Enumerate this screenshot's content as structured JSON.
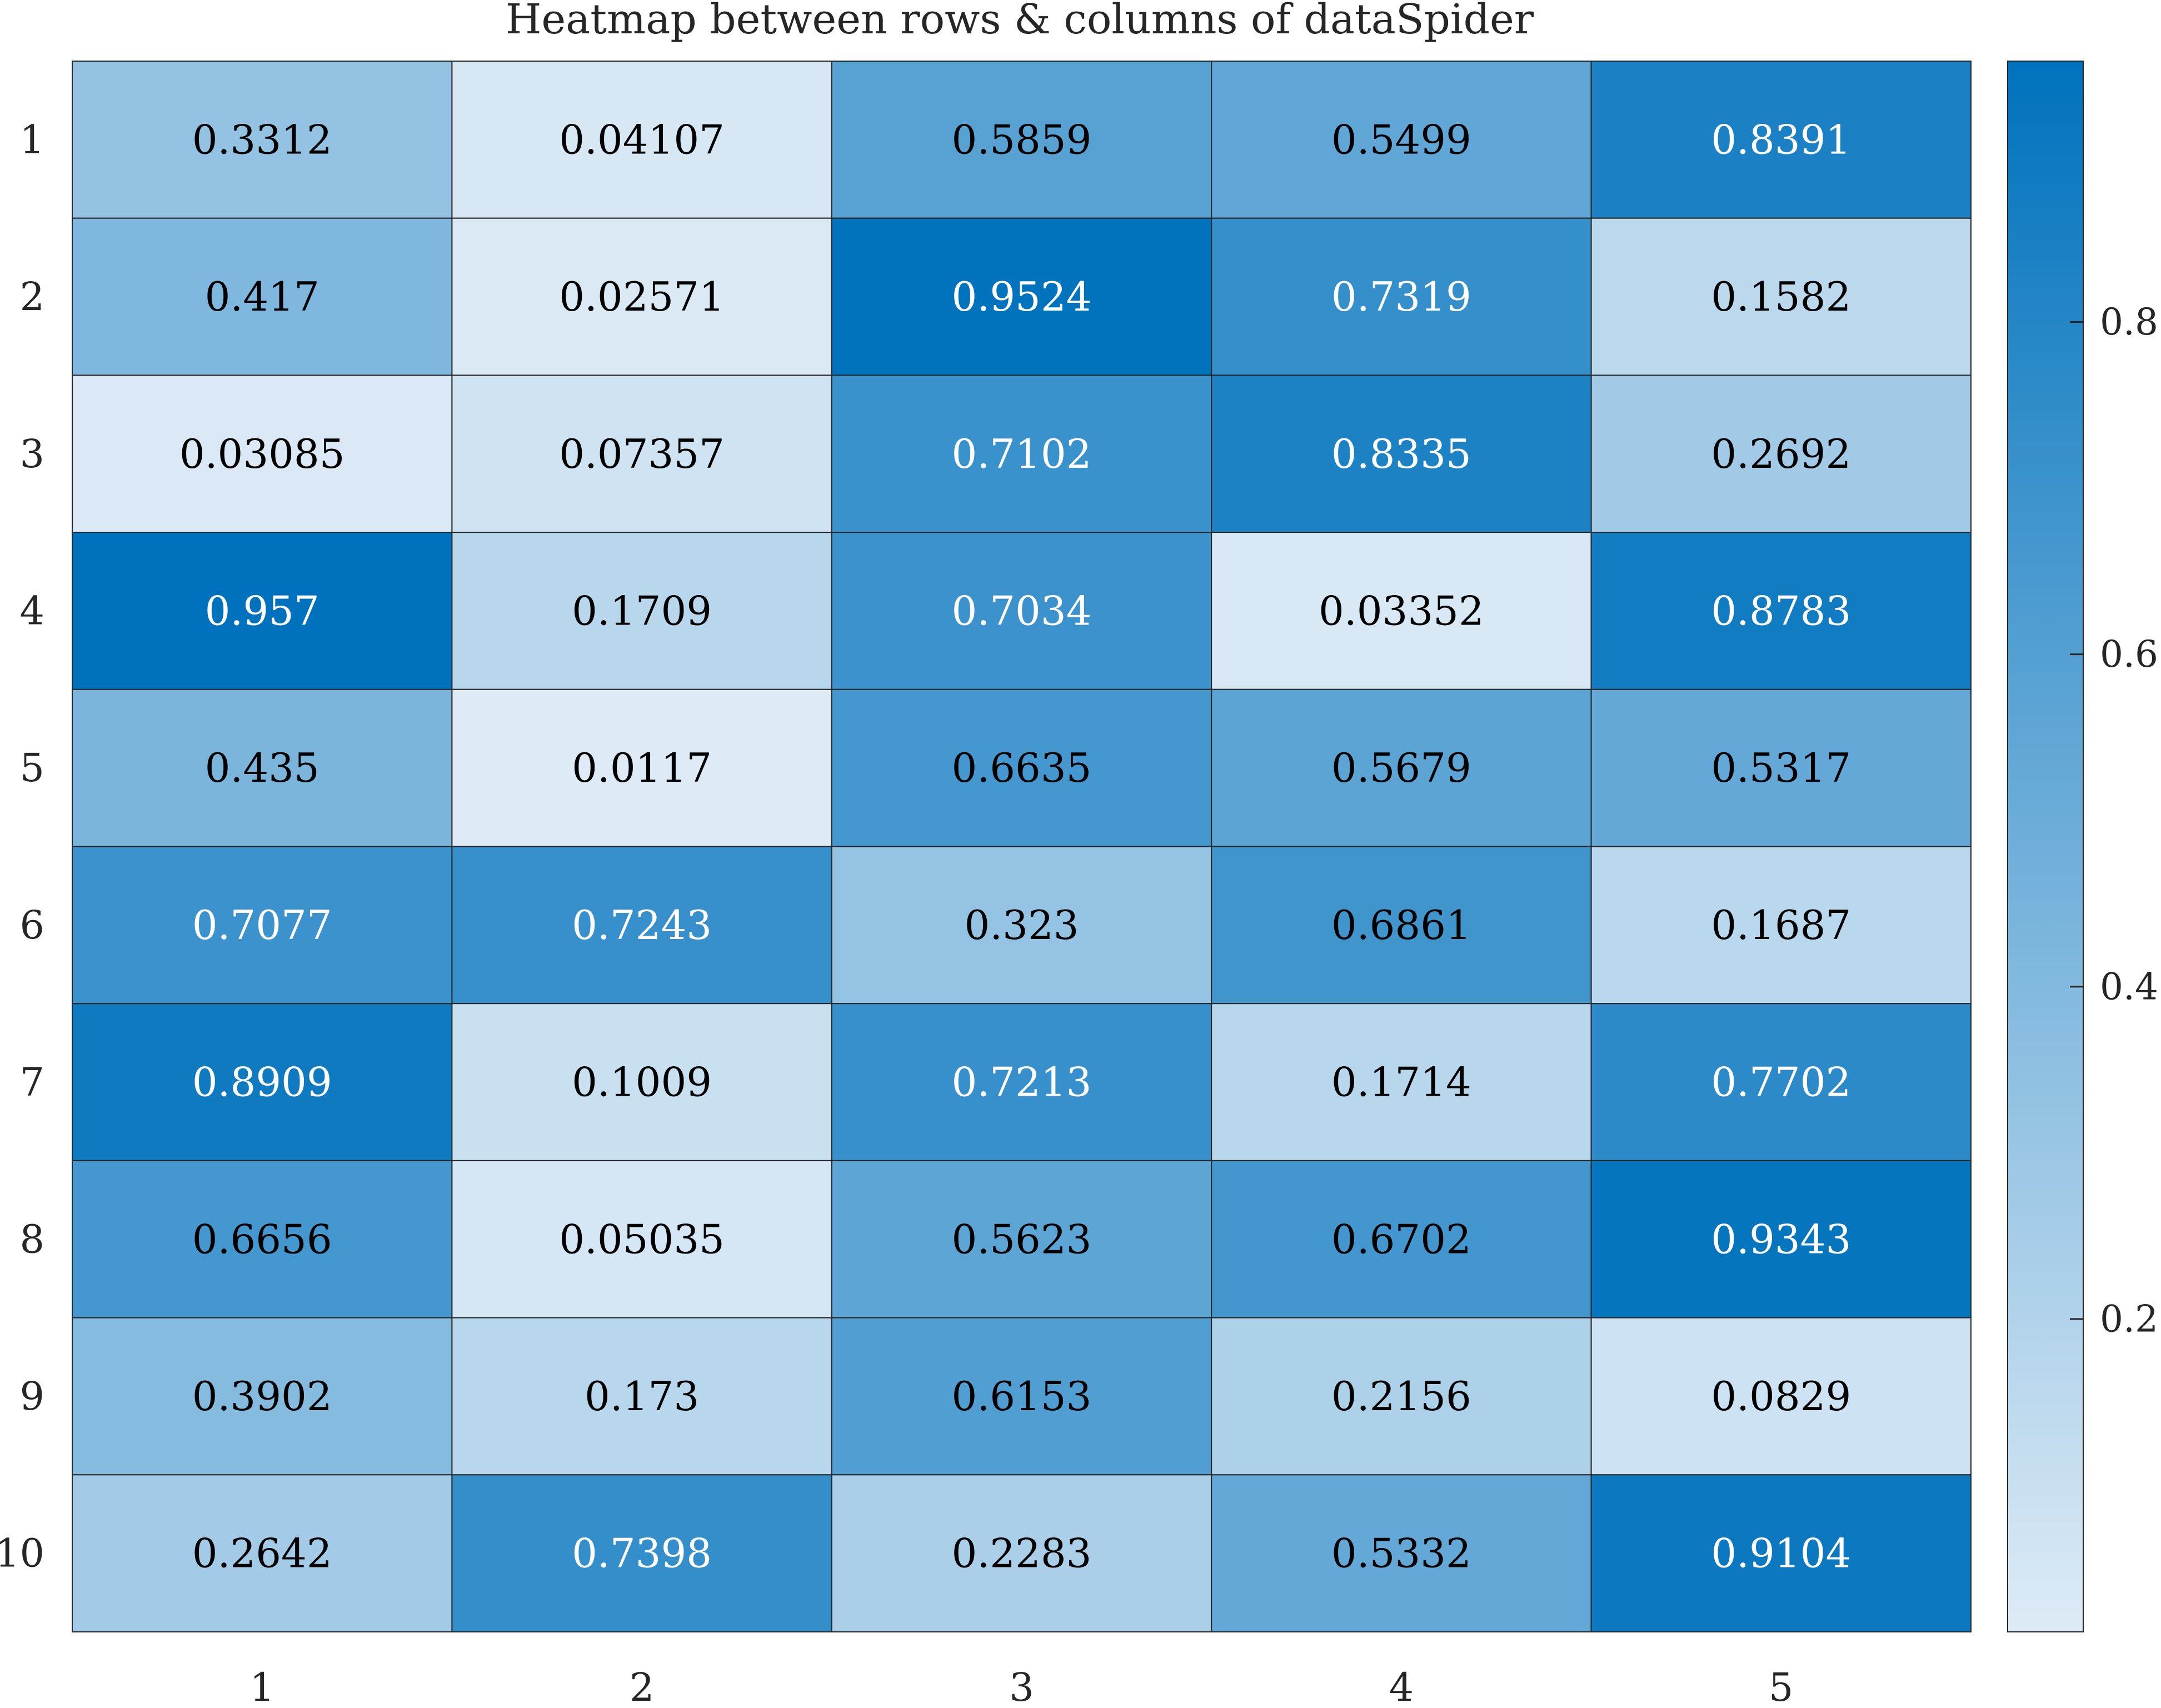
{
  "chart_data": {
    "type": "heatmap",
    "title": "Heatmap between rows & columns of dataSpider",
    "xlabel": "",
    "ylabel": "",
    "row_labels": [
      "1",
      "2",
      "3",
      "4",
      "5",
      "6",
      "7",
      "8",
      "9",
      "10"
    ],
    "col_labels": [
      "1",
      "2",
      "3",
      "4",
      "5"
    ],
    "cell_labels": [
      [
        "0.3312",
        "0.04107",
        "0.5859",
        "0.5499",
        "0.8391"
      ],
      [
        "0.417",
        "0.02571",
        "0.9524",
        "0.7319",
        "0.1582"
      ],
      [
        "0.03085",
        "0.07357",
        "0.7102",
        "0.8335",
        "0.2692"
      ],
      [
        "0.957",
        "0.1709",
        "0.7034",
        "0.03352",
        "0.8783"
      ],
      [
        "0.435",
        "0.0117",
        "0.6635",
        "0.5679",
        "0.5317"
      ],
      [
        "0.7077",
        "0.7243",
        "0.323",
        "0.6861",
        "0.1687"
      ],
      [
        "0.8909",
        "0.1009",
        "0.7213",
        "0.1714",
        "0.7702"
      ],
      [
        "0.6656",
        "0.05035",
        "0.5623",
        "0.6702",
        "0.9343"
      ],
      [
        "0.3902",
        "0.173",
        "0.6153",
        "0.2156",
        "0.0829"
      ],
      [
        "0.2642",
        "0.7398",
        "0.2283",
        "0.5332",
        "0.9104"
      ]
    ],
    "values": [
      [
        0.3312,
        0.04107,
        0.5859,
        0.5499,
        0.8391
      ],
      [
        0.417,
        0.02571,
        0.9524,
        0.7319,
        0.1582
      ],
      [
        0.03085,
        0.07357,
        0.7102,
        0.8335,
        0.2692
      ],
      [
        0.957,
        0.1709,
        0.7034,
        0.03352,
        0.8783
      ],
      [
        0.435,
        0.0117,
        0.6635,
        0.5679,
        0.5317
      ],
      [
        0.7077,
        0.7243,
        0.323,
        0.6861,
        0.1687
      ],
      [
        0.8909,
        0.1009,
        0.7213,
        0.1714,
        0.7702
      ],
      [
        0.6656,
        0.05035,
        0.5623,
        0.6702,
        0.9343
      ],
      [
        0.3902,
        0.173,
        0.6153,
        0.2156,
        0.0829
      ],
      [
        0.2642,
        0.7398,
        0.2283,
        0.5332,
        0.9104
      ]
    ],
    "colorbar": {
      "range": [
        0.0117,
        0.957
      ],
      "ticks": [
        0.2,
        0.4,
        0.6,
        0.8
      ],
      "tick_labels": [
        "0.2",
        "0.4",
        "0.6",
        "0.8"
      ],
      "color_low": "#deebf6",
      "color_high": "#0072bd"
    },
    "text_color_dark": "#000000",
    "text_color_light": "#ffffff",
    "grid": true
  }
}
